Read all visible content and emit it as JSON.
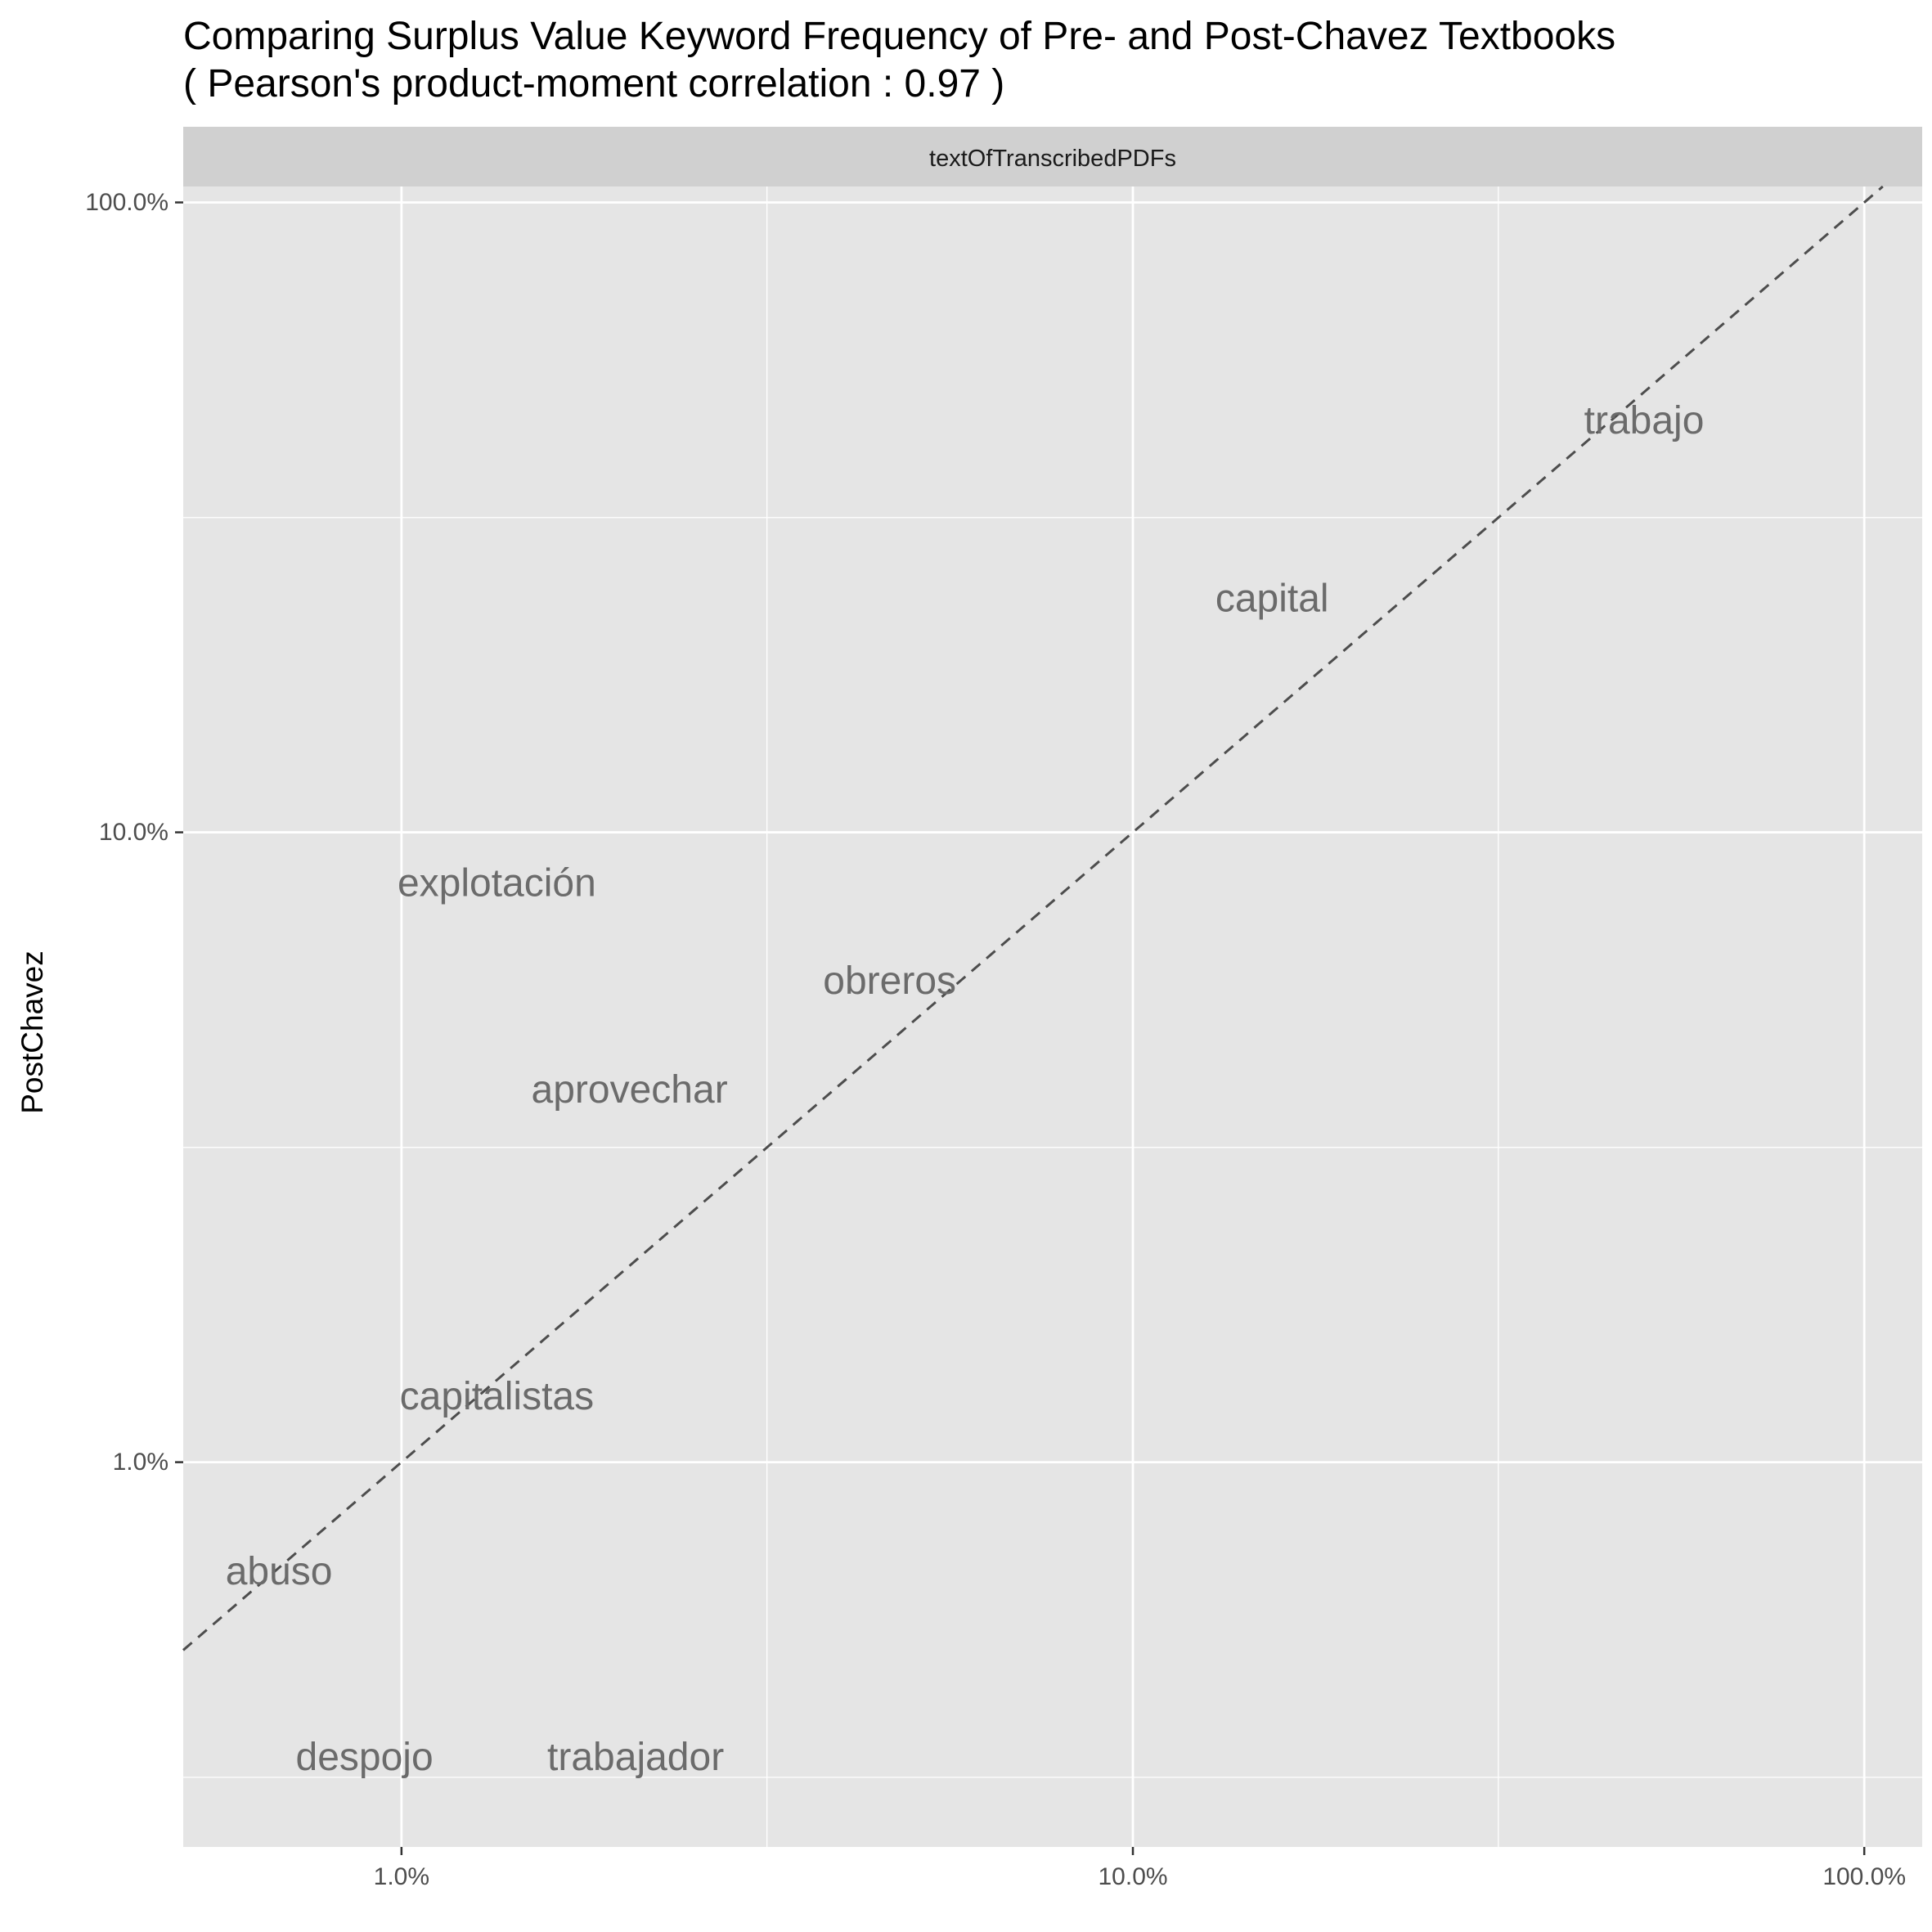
{
  "chart_data": {
    "type": "scatter",
    "title": "Comparing Surplus Value Keyword Frequency of Pre- and Post-Chavez Textbooks",
    "subtitle": "( Pearson's product-moment correlation :  0.97 )",
    "facet_label": "textOfTranscribedPDFs",
    "xlabel": "",
    "ylabel": "PostChavez",
    "x_scale": "log10",
    "y_scale": "log10",
    "xlim": [
      0.00503,
      1.2
    ],
    "ylim": [
      0.00245,
      1.06
    ],
    "x_ticks": [
      {
        "value": 0.01,
        "label": "1.0%"
      },
      {
        "value": 0.1,
        "label": "10.0%"
      },
      {
        "value": 1.0,
        "label": "100.0%"
      }
    ],
    "y_ticks": [
      {
        "value": 0.01,
        "label": "1.0%"
      },
      {
        "value": 0.1,
        "label": "10.0%"
      },
      {
        "value": 1.0,
        "label": "100.0%"
      }
    ],
    "x_minor_breaks": [
      0.0316,
      0.316
    ],
    "y_minor_breaks": [
      0.00316,
      0.0316,
      0.316
    ],
    "reference_line": {
      "type": "identity",
      "style": "dashed"
    },
    "grid": true,
    "points": [
      {
        "label": "trabajo",
        "x": 0.5,
        "y": 0.45
      },
      {
        "label": "capital",
        "x": 0.155,
        "y": 0.235
      },
      {
        "label": "explotación",
        "x": 0.0135,
        "y": 0.083
      },
      {
        "label": "obreros",
        "x": 0.0465,
        "y": 0.058
      },
      {
        "label": "aprovechar",
        "x": 0.0205,
        "y": 0.039
      },
      {
        "label": "capitalistas",
        "x": 0.0135,
        "y": 0.0127
      },
      {
        "label": "abuso",
        "x": 0.0068,
        "y": 0.0067
      },
      {
        "label": "despojo",
        "x": 0.0089,
        "y": 0.0034
      },
      {
        "label": "trabajador",
        "x": 0.0209,
        "y": 0.0034
      }
    ],
    "colors": {
      "panel_background": "#e5e5e5",
      "grid_major": "#ffffff",
      "strip_background": "#d0d0d0",
      "label_text": "#6b6b6b",
      "reference_line": "#4d4d4d"
    }
  }
}
